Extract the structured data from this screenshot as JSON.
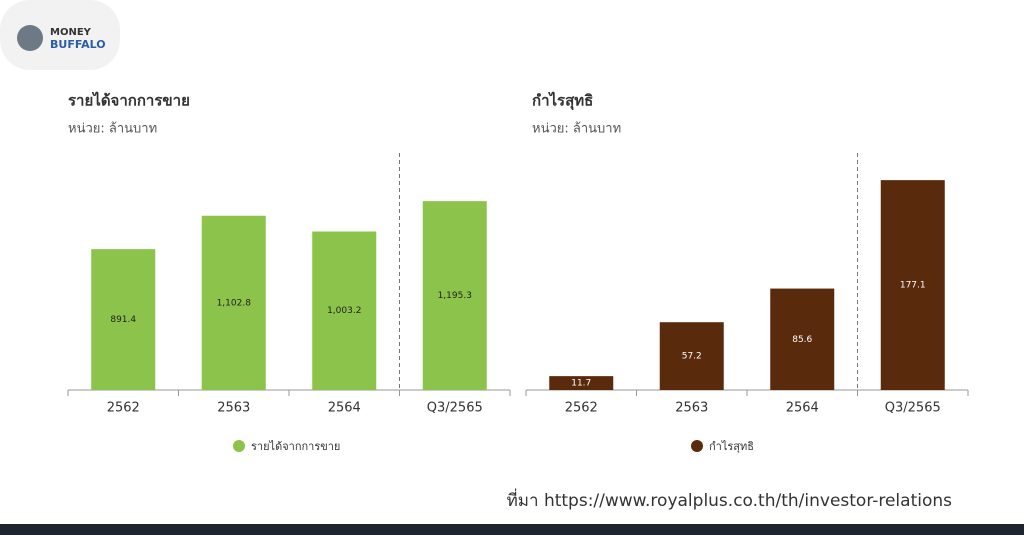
{
  "logo": {
    "line1": "MONEY",
    "line2": "BUFFALO"
  },
  "chart_data": [
    {
      "type": "bar",
      "title": "รายได้จากการขาย",
      "subtitle": "หน่วย: ล้านบาท",
      "categories": [
        "2562",
        "2563",
        "2564",
        "Q3/2565"
      ],
      "series": [
        {
          "name": "รายได้จากการขาย",
          "color": "#8cc34a",
          "values": [
            891.4,
            1102.8,
            1003.2,
            1195.3
          ],
          "value_labels": [
            "891.4",
            "1,102.8",
            "1,003.2",
            "1,195.3"
          ]
        }
      ],
      "ylim": [
        0,
        1500
      ]
    },
    {
      "type": "bar",
      "title": "กำไรสุทธิ",
      "subtitle": "หน่วย: ล้านบาท",
      "categories": [
        "2562",
        "2563",
        "2564",
        "Q3/2565"
      ],
      "series": [
        {
          "name": "กำไรสุทธิ",
          "color": "#5a2a0c",
          "values": [
            11.7,
            57.2,
            85.6,
            177.1
          ]
        }
      ],
      "ylim": [
        0,
        200
      ]
    }
  ],
  "source": "ที่มา https://www.royalplus.co.th/th/investor-relations"
}
